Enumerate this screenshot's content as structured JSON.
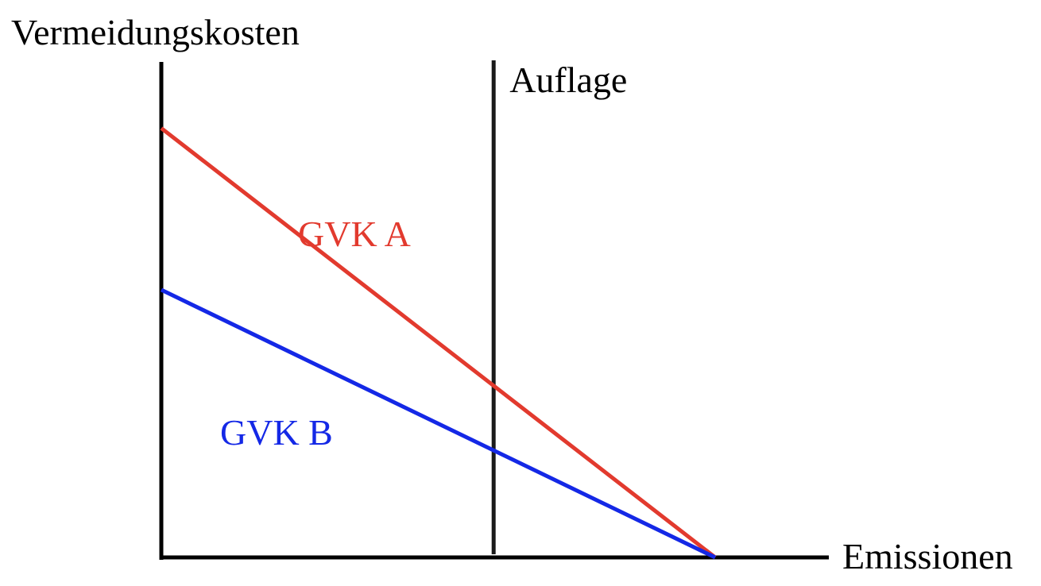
{
  "chart_data": {
    "type": "line",
    "title": "",
    "xlabel": "Emissionen",
    "ylabel": "Vermeidungskosten",
    "xlim": [
      0,
      1
    ],
    "ylim": [
      0,
      1
    ],
    "grid": false,
    "ticks": "none",
    "reference_line": {
      "orientation": "vertical",
      "x": 0.6,
      "label": "Auflage",
      "color": "#1a1a1a"
    },
    "series": [
      {
        "name": "GVK A",
        "color": "#e23a2e",
        "x": [
          0,
          1
        ],
        "y": [
          0.77,
          0
        ]
      },
      {
        "name": "GVK B",
        "color": "#1428e6",
        "x": [
          0,
          1
        ],
        "y": [
          0.48,
          0
        ]
      }
    ]
  }
}
